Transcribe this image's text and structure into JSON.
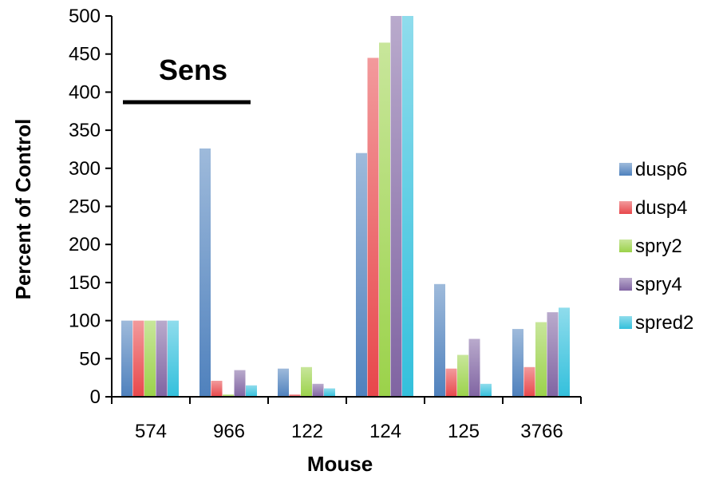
{
  "chart_data": {
    "type": "bar",
    "xlabel": "Mouse",
    "ylabel": "Percent of Control",
    "ylim": [
      0,
      500
    ],
    "yticks": [
      "0",
      "50",
      "100",
      "150",
      "200",
      "250",
      "300",
      "350",
      "400",
      "450",
      "500"
    ],
    "categories": [
      "574",
      "966",
      "122",
      "124",
      "125",
      "3766"
    ],
    "series": [
      {
        "name": "dusp6",
        "color": "#4f81bd",
        "values": [
          100,
          326,
          37,
          320,
          148,
          89
        ]
      },
      {
        "name": "dusp4",
        "color": "#e8474b",
        "values": [
          100,
          21,
          3,
          445,
          37,
          39
        ]
      },
      {
        "name": "spry2",
        "color": "#9bd24a",
        "values": [
          100,
          3,
          39,
          465,
          55,
          98
        ]
      },
      {
        "name": "spry4",
        "color": "#8064a2",
        "values": [
          100,
          35,
          17,
          500,
          76,
          111
        ]
      },
      {
        "name": "spred2",
        "color": "#33c0dc",
        "values": [
          100,
          15,
          11,
          500,
          17,
          117
        ]
      }
    ],
    "annotation": {
      "text": "Sens",
      "spans_categories": [
        "574",
        "966"
      ]
    },
    "legend_position": "right",
    "grid": false
  }
}
